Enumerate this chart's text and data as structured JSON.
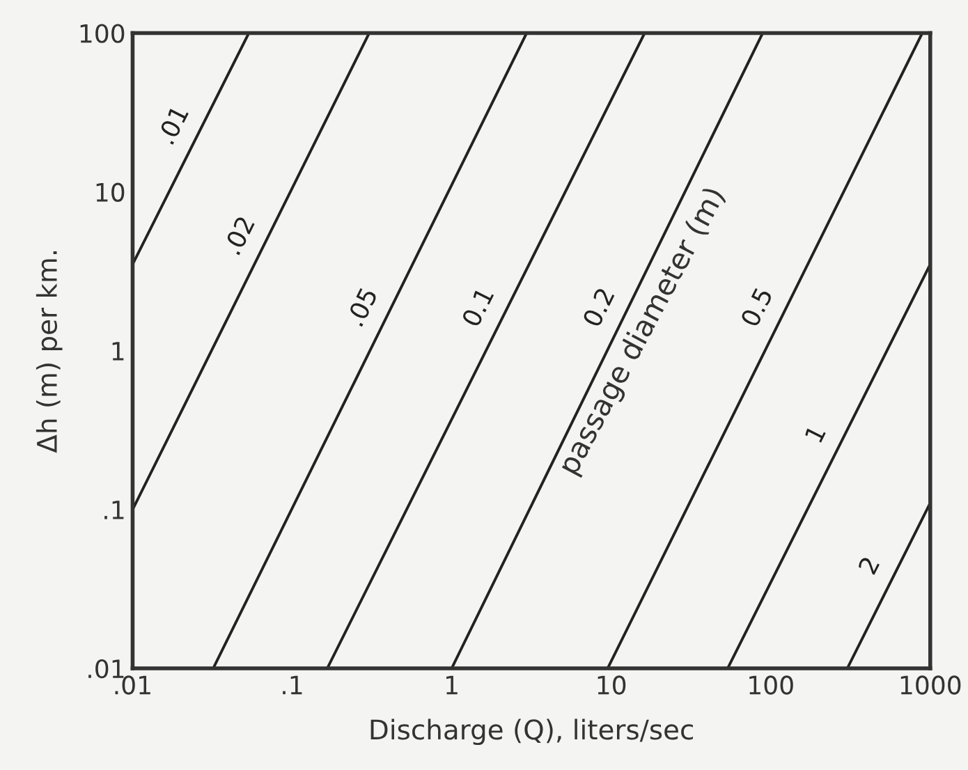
{
  "chart_data": {
    "type": "line",
    "xlabel": "Discharge (Q), liters/sec",
    "ylabel": "Δh (m) per km.",
    "log": "xy",
    "grid": false,
    "legend": false,
    "xlim": [
      0.01,
      1000
    ],
    "ylim": [
      0.01,
      100
    ],
    "xticks": [
      {
        "value": 0.01,
        "label": ".01"
      },
      {
        "value": 0.1,
        "label": ".1"
      },
      1,
      10,
      100,
      1000
    ],
    "yticks": [
      {
        "value": 0.01,
        "label": ".01"
      },
      {
        "value": 0.1,
        "label": ".1"
      },
      1,
      10,
      100
    ],
    "annotations": [
      "passage diameter (m)"
    ],
    "series": [
      {
        "name": ".01",
        "color": "#222222",
        "x": [
          0.01,
          0.0535
        ],
        "values": [
          3.5,
          100
        ]
      },
      {
        "name": ".02",
        "color": "#222222",
        "x": [
          0.01,
          0.304
        ],
        "values": [
          0.1,
          100
        ]
      },
      {
        "name": ".05",
        "color": "#222222",
        "x": [
          0.032,
          2.95
        ],
        "values": [
          0.01,
          100
        ]
      },
      {
        "name": "0.1",
        "color": "#222222",
        "x": [
          0.166,
          16.2
        ],
        "values": [
          0.01,
          100
        ]
      },
      {
        "name": "0.2",
        "color": "#222222",
        "x": [
          1.0,
          89
        ],
        "values": [
          0.01,
          100
        ]
      },
      {
        "name": "0.5",
        "color": "#222222",
        "x": [
          9.5,
          891
        ],
        "values": [
          0.01,
          100
        ]
      },
      {
        "name": "1",
        "color": "#222222",
        "x": [
          53.7,
          1000
        ],
        "values": [
          0.01,
          3.5
        ]
      },
      {
        "name": "2",
        "color": "#222222",
        "x": [
          302,
          1000
        ],
        "values": [
          0.01,
          0.11
        ]
      }
    ]
  }
}
